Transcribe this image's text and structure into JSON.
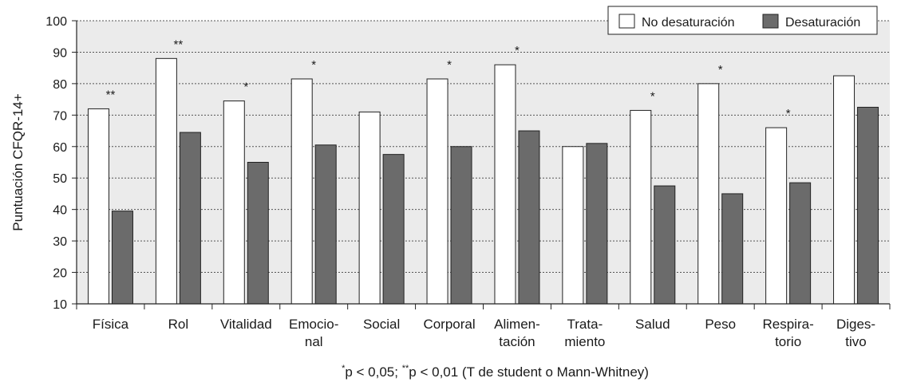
{
  "chart_data": {
    "type": "bar",
    "ylabel": "Puntuación CFQR-14+",
    "xlabel": "",
    "ylim": [
      10,
      100
    ],
    "yticks": [
      10,
      20,
      30,
      40,
      50,
      60,
      70,
      80,
      90,
      100
    ],
    "grid": true,
    "legend_position": "top-right",
    "categories": [
      [
        "Física"
      ],
      [
        "Rol"
      ],
      [
        "Vitalidad"
      ],
      [
        "Emocio-",
        "nal"
      ],
      [
        "Social"
      ],
      [
        "Corporal"
      ],
      [
        "Alimen-",
        "tación"
      ],
      [
        "Trata-",
        "miento"
      ],
      [
        "Salud"
      ],
      [
        "Peso"
      ],
      [
        "Respira-",
        "torio"
      ],
      [
        "Diges-",
        "tivo"
      ]
    ],
    "series": [
      {
        "name": "No desaturación",
        "color": "#ffffff",
        "values": [
          72,
          88,
          74.5,
          81.5,
          71,
          81.5,
          86,
          60,
          71.5,
          80,
          66,
          82.5
        ]
      },
      {
        "name": "Desaturación",
        "color": "#6b6b6b",
        "values": [
          39.5,
          64.5,
          55,
          60.5,
          57.5,
          60,
          65,
          61,
          47.5,
          45,
          48.5,
          72.5
        ]
      }
    ],
    "significance": [
      "**",
      "**",
      "*",
      "*",
      "",
      "*",
      "*",
      "",
      "*",
      "*",
      "*",
      ""
    ],
    "footnote": {
      "star1": "*",
      "text1": "p < 0,05; ",
      "star2": "**",
      "text2": "p < 0,01 (T de student o Mann-Whitney)"
    },
    "colors": {
      "plot_background": "#ebebeb",
      "gridline": "#555555",
      "bar_outline": "#222222"
    }
  }
}
